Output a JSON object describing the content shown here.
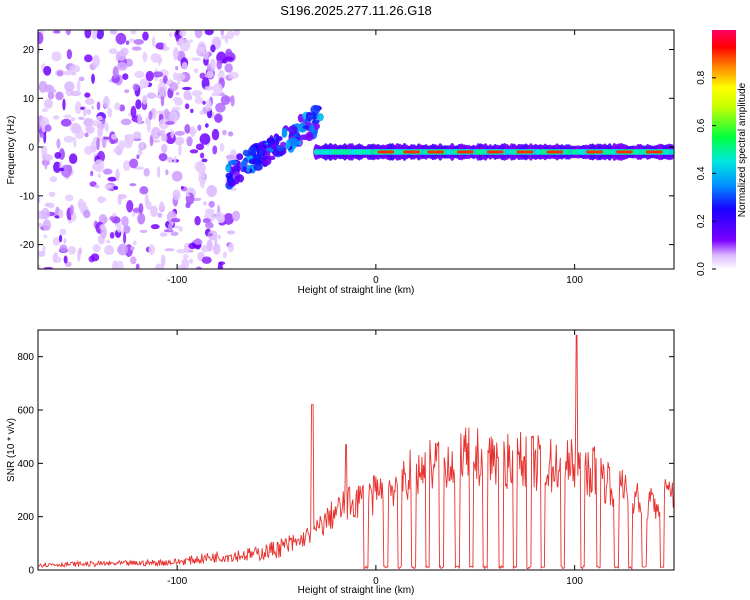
{
  "page_title": "S196.2025.277.11.26.G18",
  "colors": {
    "snr_line": "#e8312e",
    "axis": "#000000",
    "background": "#ffffff"
  },
  "chart_data": [
    {
      "type": "heatmap",
      "title": "S196.2025.277.11.26.G18",
      "xlabel": "Height of straight line (km)",
      "ylabel": "Frequency (Hz)",
      "xlim": [
        -170,
        150
      ],
      "ylim": [
        -25,
        24
      ],
      "x_ticks": [
        -100,
        0,
        100
      ],
      "y_ticks": [
        -20,
        -10,
        0,
        10,
        20
      ],
      "colorbar": {
        "label": "Normalized spectral amplitude",
        "range": [
          0.0,
          1.0
        ],
        "ticks": [
          "0.0",
          "0.2",
          "0.4",
          "0.6",
          "0.8"
        ],
        "colormap": [
          "#ffffff",
          "#7a00ff",
          "#0040ff",
          "#00d8ff",
          "#00ff40",
          "#ffff00",
          "#ff8000",
          "#ff0000",
          "#ff0066"
        ]
      },
      "description_values": {
        "main_track_frequency_hz": -1,
        "track_start_height_km": -30,
        "noise_region_heights_km": [
          -170,
          -70
        ],
        "rising_segment_heights_km": [
          -75,
          -28
        ],
        "peak_amplitude_segments": [
          5,
          18,
          30,
          45,
          60,
          75,
          90,
          110,
          125,
          140
        ]
      }
    },
    {
      "type": "line",
      "xlabel": "Height of straight line (km)",
      "ylabel": "SNR (10 * v/v)",
      "xlim": [
        -170,
        150
      ],
      "ylim": [
        0,
        900
      ],
      "x_ticks": [
        -100,
        0,
        100
      ],
      "y_ticks": [
        0,
        200,
        400,
        600,
        800
      ],
      "series": [
        {
          "name": "SNR",
          "envelope_x": [
            -170,
            -120,
            -100,
            -80,
            -60,
            -40,
            -30,
            -20,
            -10,
            0,
            10,
            20,
            30,
            40,
            50,
            60,
            70,
            80,
            90,
            100,
            110,
            120,
            130,
            140,
            150
          ],
          "envelope_y": [
            20,
            25,
            30,
            50,
            60,
            100,
            150,
            220,
            260,
            280,
            320,
            370,
            400,
            420,
            420,
            420,
            410,
            400,
            390,
            390,
            370,
            320,
            270,
            240,
            300
          ],
          "spikes_x": [
            -32,
            -15,
            101
          ],
          "spikes_y": [
            620,
            470,
            880
          ],
          "dips_x": [
            -5,
            5,
            12,
            19,
            26,
            33,
            41,
            48,
            55,
            63,
            70,
            77,
            84,
            94,
            104,
            112,
            121,
            128,
            135,
            144
          ],
          "dips_y": [
            5,
            5,
            5,
            5,
            5,
            5,
            5,
            5,
            5,
            5,
            5,
            5,
            5,
            5,
            5,
            5,
            5,
            5,
            5,
            5
          ]
        }
      ]
    }
  ]
}
